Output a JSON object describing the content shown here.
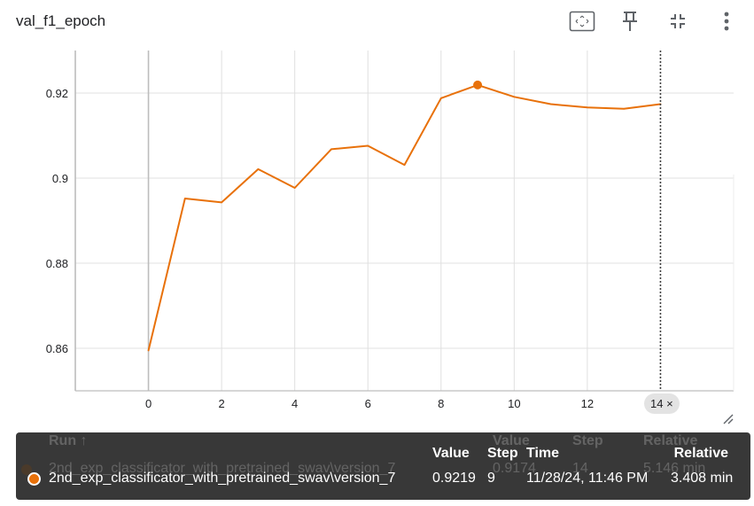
{
  "card": {
    "title": "val_f1_epoch",
    "icons": [
      "fit-to-screen-icon",
      "pin-icon",
      "collapse-icon",
      "more-vert-icon"
    ]
  },
  "chart_data": {
    "type": "line",
    "xlim": [
      -2,
      16
    ],
    "ylim": [
      0.85,
      0.93
    ],
    "x_ticks": [
      0,
      2,
      4,
      6,
      8,
      10,
      12
    ],
    "x_tick_labels": [
      "0",
      "2",
      "4",
      "6",
      "8",
      "10",
      "12"
    ],
    "y_ticks": [
      0.86,
      0.88,
      0.9,
      0.92
    ],
    "y_tick_labels": [
      "0.86",
      "0.88",
      "0.9",
      "0.92"
    ],
    "grid": true,
    "series": [
      {
        "name": "2nd_exp_classificator_with_pretrained_swav\\version_7",
        "color": "#e8710a",
        "x": [
          0,
          1,
          2,
          3,
          4,
          5,
          6,
          7,
          8,
          9,
          10,
          11,
          12,
          13,
          14
        ],
        "y": [
          0.8595,
          0.8952,
          0.8943,
          0.9021,
          0.8977,
          0.9068,
          0.9076,
          0.9031,
          0.9188,
          0.9219,
          0.9191,
          0.9174,
          0.9166,
          0.9163,
          0.9174
        ]
      }
    ],
    "highlight_point": {
      "x": 9,
      "y": 0.9219
    },
    "cursor_step": 14,
    "cursor_chip": "14 ×"
  },
  "tooltip": {
    "ghost_header": {
      "run": "Run ↑",
      "value": "Value",
      "step": "Step",
      "relative": "Relative"
    },
    "ghost_row": {
      "run": "2nd_exp_classificator_with_pretrained_swav\\version_7",
      "value": "0.9174",
      "step": "14",
      "relative": "5.146 min"
    },
    "header": {
      "value": "Value",
      "step": "Step",
      "time": "Time",
      "relative": "Relative"
    },
    "row": {
      "run": "2nd_exp_classificator_with_pretrained_swav\\version_7",
      "value": "0.9219",
      "step": "9",
      "time": "11/28/24, 11:46 PM",
      "relative": "3.408 min",
      "color": "#e8710a"
    }
  }
}
